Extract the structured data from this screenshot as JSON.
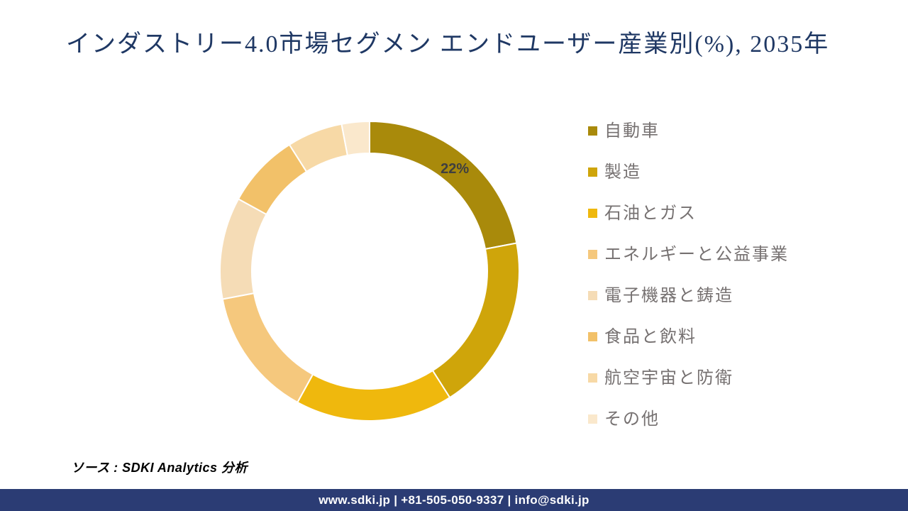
{
  "page": {
    "title": "インダストリー4.0市場セグメン エンドユーザー産業別(%), 2035年",
    "source": "ソース : SDKI Analytics 分析",
    "footer_text": "www.sdki.jp | +81-505-050-9337 | info@sdki.jp"
  },
  "colors": {
    "title": "#1F3864",
    "footer_bg": "#2B3C74",
    "legend_text": "#767171",
    "data_label": "#3F3F3F",
    "slice_gap": "#FFFFFF"
  },
  "chart_data": {
    "type": "pie",
    "subtype": "donut",
    "title": "インダストリー4.0市場セグメン エンドユーザー産業別(%), 2035年",
    "categories": [
      "自動車",
      "製造",
      "石油とガス",
      "エネルギーと公益事業",
      "電子機器と鋳造",
      "食品と飲料",
      "航空宇宙と防衛",
      "その他"
    ],
    "values": [
      22,
      19,
      17,
      14,
      11,
      8,
      6,
      3
    ],
    "unit": "%",
    "colors": [
      "#A98A0B",
      "#CFA50A",
      "#EFB80D",
      "#F5C87D",
      "#F5DCB6",
      "#F2C169",
      "#F7D9A6",
      "#FAE8CC"
    ],
    "start_angle_deg": 0,
    "direction": "clockwise",
    "outer_radius_px": 211,
    "inner_radius_px": 166,
    "legend_position": "right",
    "data_labels": [
      {
        "index": 0,
        "text": "22%"
      }
    ]
  }
}
